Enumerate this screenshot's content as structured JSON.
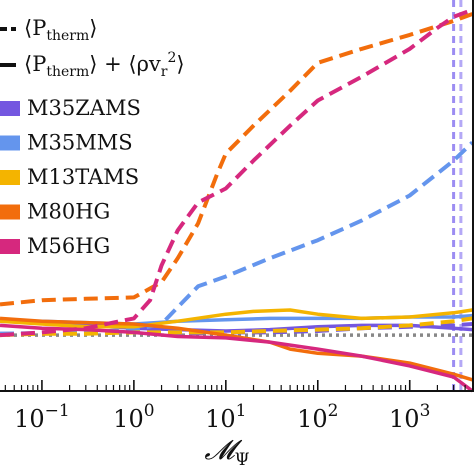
{
  "chart_data": {
    "type": "line",
    "xscale": "log",
    "xlim": [
      0.035,
      5000
    ],
    "ylim": [
      0.6,
      3.4
    ],
    "xlabel": "𝓜",
    "xlabel_sub": "Ψ",
    "x_ticks": [
      {
        "value": 0.1,
        "base": "10",
        "exp": "−1"
      },
      {
        "value": 1,
        "base": "10",
        "exp": "0"
      },
      {
        "value": 10,
        "base": "10",
        "exp": "1"
      },
      {
        "value": 100,
        "base": "10",
        "exp": "2"
      },
      {
        "value": 1000,
        "base": "10",
        "exp": "3"
      }
    ],
    "style_legend": [
      {
        "label": "⟨P_therm⟩",
        "main": "⟨P",
        "sub": "therm",
        "tail": "⟩",
        "style": "dashed"
      },
      {
        "label": "⟨P_therm⟩ + ⟨ρv_r²⟩",
        "main": "⟨P",
        "sub": "therm",
        "tail": "⟩ + ⟨ρv",
        "sub2": "r",
        "sup2": "2",
        "tail2": "⟩",
        "style": "solid"
      }
    ],
    "reference_line": {
      "y": 1.0,
      "color": "#888888",
      "style": "dotted"
    },
    "vertical_markers": [
      {
        "x": 3000,
        "color": "#7b68ee"
      },
      {
        "x": 3600,
        "color": "#9b8bf4"
      }
    ],
    "series": [
      {
        "name": "M35ZAMS",
        "color": "#7457e0",
        "dashed": {
          "x": [
            0.035,
            0.1,
            0.3,
            1,
            3,
            10,
            30,
            100,
            300,
            1000,
            3000,
            4800
          ],
          "y": [
            1.01,
            1.01,
            1.02,
            1.02,
            1.01,
            1.02,
            1.02,
            1.03,
            1.05,
            1.06,
            1.07,
            1.08
          ]
        },
        "solid": {
          "x": [
            0.035,
            0.1,
            0.3,
            1,
            3,
            10,
            30,
            100,
            300,
            1000,
            3000,
            4800
          ],
          "y": [
            1.1,
            1.09,
            1.07,
            1.05,
            1.04,
            1.03,
            1.04,
            1.06,
            1.07,
            1.07,
            1.05,
            1.04
          ]
        }
      },
      {
        "name": "M35MMS",
        "color": "#6495ed",
        "dashed": {
          "x": [
            0.035,
            0.3,
            1,
            2,
            3,
            5,
            10,
            30,
            100,
            300,
            1000,
            3000,
            4800
          ],
          "y": [
            1.01,
            1.02,
            1.04,
            1.08,
            1.2,
            1.35,
            1.42,
            1.55,
            1.68,
            1.82,
            2.0,
            2.25,
            2.38
          ]
        },
        "solid": {
          "x": [
            0.035,
            0.1,
            0.3,
            1,
            3,
            10,
            30,
            100,
            300,
            1000,
            3000,
            4800
          ],
          "y": [
            1.1,
            1.1,
            1.09,
            1.08,
            1.1,
            1.11,
            1.12,
            1.12,
            1.12,
            1.13,
            1.13,
            1.14
          ]
        }
      },
      {
        "name": "M13TAMS",
        "color": "#f4b400",
        "dashed": {
          "x": [
            0.035,
            0.1,
            0.3,
            1,
            3,
            10,
            30,
            100,
            300,
            1000,
            3000,
            4800
          ],
          "y": [
            1.0,
            1.01,
            1.01,
            1.02,
            1.02,
            1.02,
            1.03,
            1.04,
            1.05,
            1.07,
            1.1,
            1.12
          ]
        },
        "solid": {
          "x": [
            0.035,
            0.1,
            0.3,
            1,
            3,
            10,
            20,
            50,
            100,
            300,
            1000,
            3000,
            4800
          ],
          "y": [
            1.1,
            1.08,
            1.06,
            1.06,
            1.1,
            1.15,
            1.17,
            1.18,
            1.15,
            1.12,
            1.13,
            1.16,
            1.18
          ]
        }
      },
      {
        "name": "M80HG",
        "color": "#f26d0c",
        "dashed": {
          "x": [
            0.035,
            0.1,
            0.3,
            1,
            2,
            3,
            5,
            8,
            10,
            20,
            50,
            100,
            300,
            1000,
            3000,
            4800
          ],
          "y": [
            1.22,
            1.25,
            1.26,
            1.27,
            1.38,
            1.55,
            1.8,
            2.15,
            2.3,
            2.5,
            2.75,
            2.95,
            3.05,
            3.15,
            3.25,
            3.3
          ]
        },
        "solid": {
          "x": [
            0.035,
            0.1,
            0.3,
            1,
            3,
            10,
            30,
            50,
            100,
            300,
            1000,
            3000,
            4800
          ],
          "y": [
            1.12,
            1.1,
            1.09,
            1.08,
            1.05,
            1.0,
            0.95,
            0.9,
            0.87,
            0.85,
            0.8,
            0.72,
            0.68
          ]
        }
      },
      {
        "name": "M56HG",
        "color": "#d6287e",
        "dashed": {
          "x": [
            0.035,
            0.1,
            0.3,
            1,
            1.5,
            2,
            3,
            5,
            10,
            20,
            50,
            100,
            300,
            1000,
            2000,
            3000,
            4800
          ],
          "y": [
            1.0,
            1.02,
            1.05,
            1.12,
            1.25,
            1.5,
            1.75,
            1.95,
            2.05,
            2.25,
            2.5,
            2.68,
            2.85,
            3.05,
            3.2,
            3.28,
            3.33
          ]
        },
        "solid": {
          "x": [
            0.035,
            0.1,
            0.3,
            1,
            3,
            10,
            30,
            100,
            300,
            1000,
            3000,
            4800
          ],
          "y": [
            1.07,
            1.05,
            1.04,
            1.02,
            0.99,
            0.98,
            0.95,
            0.9,
            0.85,
            0.78,
            0.7,
            0.6
          ]
        }
      }
    ]
  }
}
